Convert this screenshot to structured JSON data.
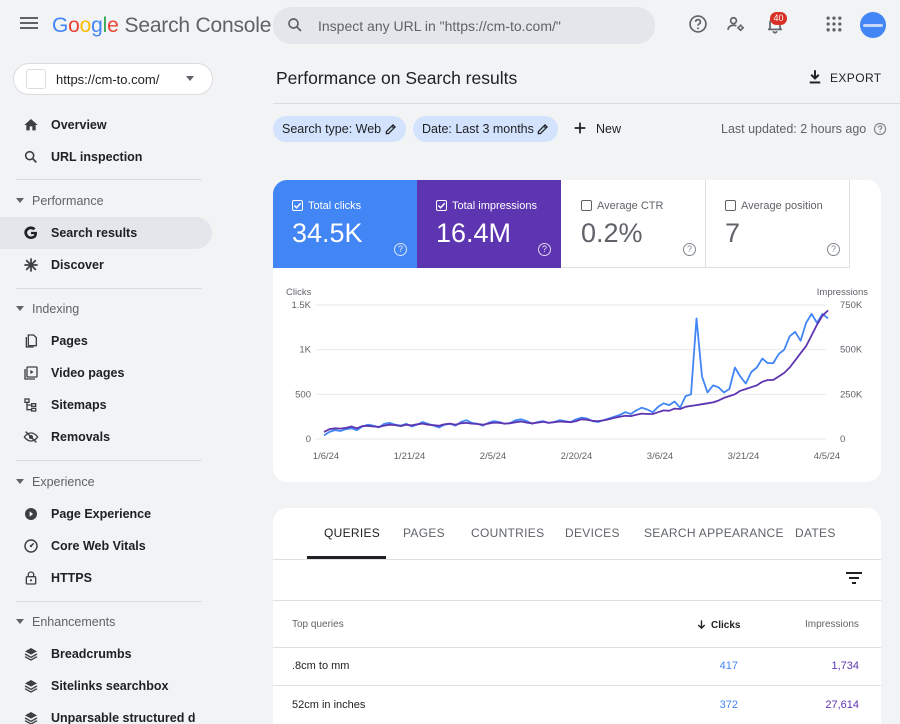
{
  "app": {
    "name_parts": [
      "G",
      "o",
      "o",
      "g",
      "l",
      "e"
    ],
    "product": "Search Console",
    "search_placeholder": "Inspect any URL in \"https://cm-to.com/\"",
    "notification_count": "40"
  },
  "property": {
    "url": "https://cm-to.com/"
  },
  "sidebar": {
    "top_items": [
      {
        "label": "Overview",
        "icon": "home-icon"
      },
      {
        "label": "URL inspection",
        "icon": "search-icon"
      }
    ],
    "sections": [
      {
        "label": "Performance",
        "items": [
          {
            "label": "Search results",
            "icon": "google-g-icon",
            "active": true
          },
          {
            "label": "Discover",
            "icon": "asterisk-icon"
          }
        ]
      },
      {
        "label": "Indexing",
        "items": [
          {
            "label": "Pages",
            "icon": "pages-icon"
          },
          {
            "label": "Video pages",
            "icon": "video-pages-icon"
          },
          {
            "label": "Sitemaps",
            "icon": "sitemap-icon"
          },
          {
            "label": "Removals",
            "icon": "removals-icon"
          }
        ]
      },
      {
        "label": "Experience",
        "items": [
          {
            "label": "Page Experience",
            "icon": "page-experience-icon"
          },
          {
            "label": "Core Web Vitals",
            "icon": "gauge-icon"
          },
          {
            "label": "HTTPS",
            "icon": "lock-icon"
          }
        ]
      },
      {
        "label": "Enhancements",
        "items": [
          {
            "label": "Breadcrumbs",
            "icon": "layers-icon"
          },
          {
            "label": "Sitelinks searchbox",
            "icon": "layers-icon"
          },
          {
            "label": "Unparsable structured data",
            "icon": "layers-icon"
          }
        ]
      }
    ]
  },
  "header": {
    "title": "Performance on Search results",
    "export_label": "EXPORT",
    "filters": [
      "Search type: Web",
      "Date: Last 3 months"
    ],
    "new_label": "New",
    "last_updated": "Last updated: 2 hours ago"
  },
  "metrics": [
    {
      "label": "Total clicks",
      "value": "34.5K",
      "checked": true
    },
    {
      "label": "Total impressions",
      "value": "16.4M",
      "checked": true
    },
    {
      "label": "Average CTR",
      "value": "0.2%",
      "checked": false
    },
    {
      "label": "Average position",
      "value": "7",
      "checked": false
    }
  ],
  "chart_data": {
    "type": "line",
    "left_axis_label": "Clicks",
    "right_axis_label": "Impressions",
    "left_ticks": [
      "1.5K",
      "1K",
      "500",
      "0"
    ],
    "right_ticks": [
      "750K",
      "500K",
      "250K",
      "0"
    ],
    "left_ylim": [
      0,
      1500
    ],
    "right_ylim": [
      0,
      750000
    ],
    "x_labels": [
      "1/6/24",
      "1/21/24",
      "2/5/24",
      "2/20/24",
      "3/6/24",
      "3/21/24",
      "4/5/24"
    ],
    "series": [
      {
        "name": "Clicks",
        "axis": "left",
        "color": "#4285f4",
        "values": [
          40,
          80,
          100,
          90,
          110,
          120,
          100,
          140,
          160,
          150,
          130,
          170,
          180,
          160,
          150,
          170,
          140,
          160,
          190,
          170,
          150,
          130,
          160,
          170,
          150,
          190,
          210,
          180,
          170,
          150,
          180,
          200,
          190,
          170,
          180,
          210,
          220,
          200,
          170,
          190,
          200,
          180,
          190,
          210,
          200,
          190,
          220,
          240,
          230,
          200,
          190,
          210,
          230,
          250,
          270,
          300,
          280,
          320,
          350,
          330,
          300,
          360,
          400,
          380,
          420,
          350,
          480,
          500,
          1350,
          700,
          520,
          600,
          580,
          520,
          560,
          800,
          700,
          620,
          750,
          800,
          900,
          850,
          850,
          950,
          1000,
          1150,
          1200,
          1100,
          1300,
          1400,
          1300,
          1400,
          1350
        ]
      },
      {
        "name": "Impressions",
        "axis": "right",
        "color": "#5e35b1",
        "values": [
          40000,
          55000,
          60000,
          58000,
          62000,
          70000,
          60000,
          72000,
          74000,
          70000,
          68000,
          75000,
          80000,
          78000,
          72000,
          80000,
          76000,
          82000,
          86000,
          80000,
          78000,
          74000,
          82000,
          86000,
          80000,
          88000,
          90000,
          86000,
          84000,
          80000,
          86000,
          92000,
          90000,
          86000,
          88000,
          94000,
          98000,
          92000,
          88000,
          92000,
          96000,
          90000,
          94000,
          98000,
          96000,
          94000,
          100000,
          110000,
          108000,
          102000,
          100000,
          104000,
          110000,
          118000,
          124000,
          130000,
          128000,
          136000,
          142000,
          140000,
          140000,
          150000,
          160000,
          158000,
          170000,
          168000,
          180000,
          185000,
          190000,
          195000,
          200000,
          205000,
          215000,
          230000,
          240000,
          250000,
          270000,
          280000,
          290000,
          300000,
          320000,
          330000,
          330000,
          350000,
          370000,
          400000,
          440000,
          480000,
          520000,
          580000,
          640000,
          690000,
          720000
        ]
      }
    ]
  },
  "table": {
    "tabs": [
      "QUERIES",
      "PAGES",
      "COUNTRIES",
      "DEVICES",
      "SEARCH APPEARANCE",
      "DATES"
    ],
    "headers": {
      "query": "Top queries",
      "clicks": "Clicks",
      "impressions": "Impressions"
    },
    "rows": [
      {
        "query": ".8cm to mm",
        "clicks": "417",
        "impressions": "1,734"
      },
      {
        "query": "52cm in inches",
        "clicks": "372",
        "impressions": "27,614"
      }
    ]
  }
}
